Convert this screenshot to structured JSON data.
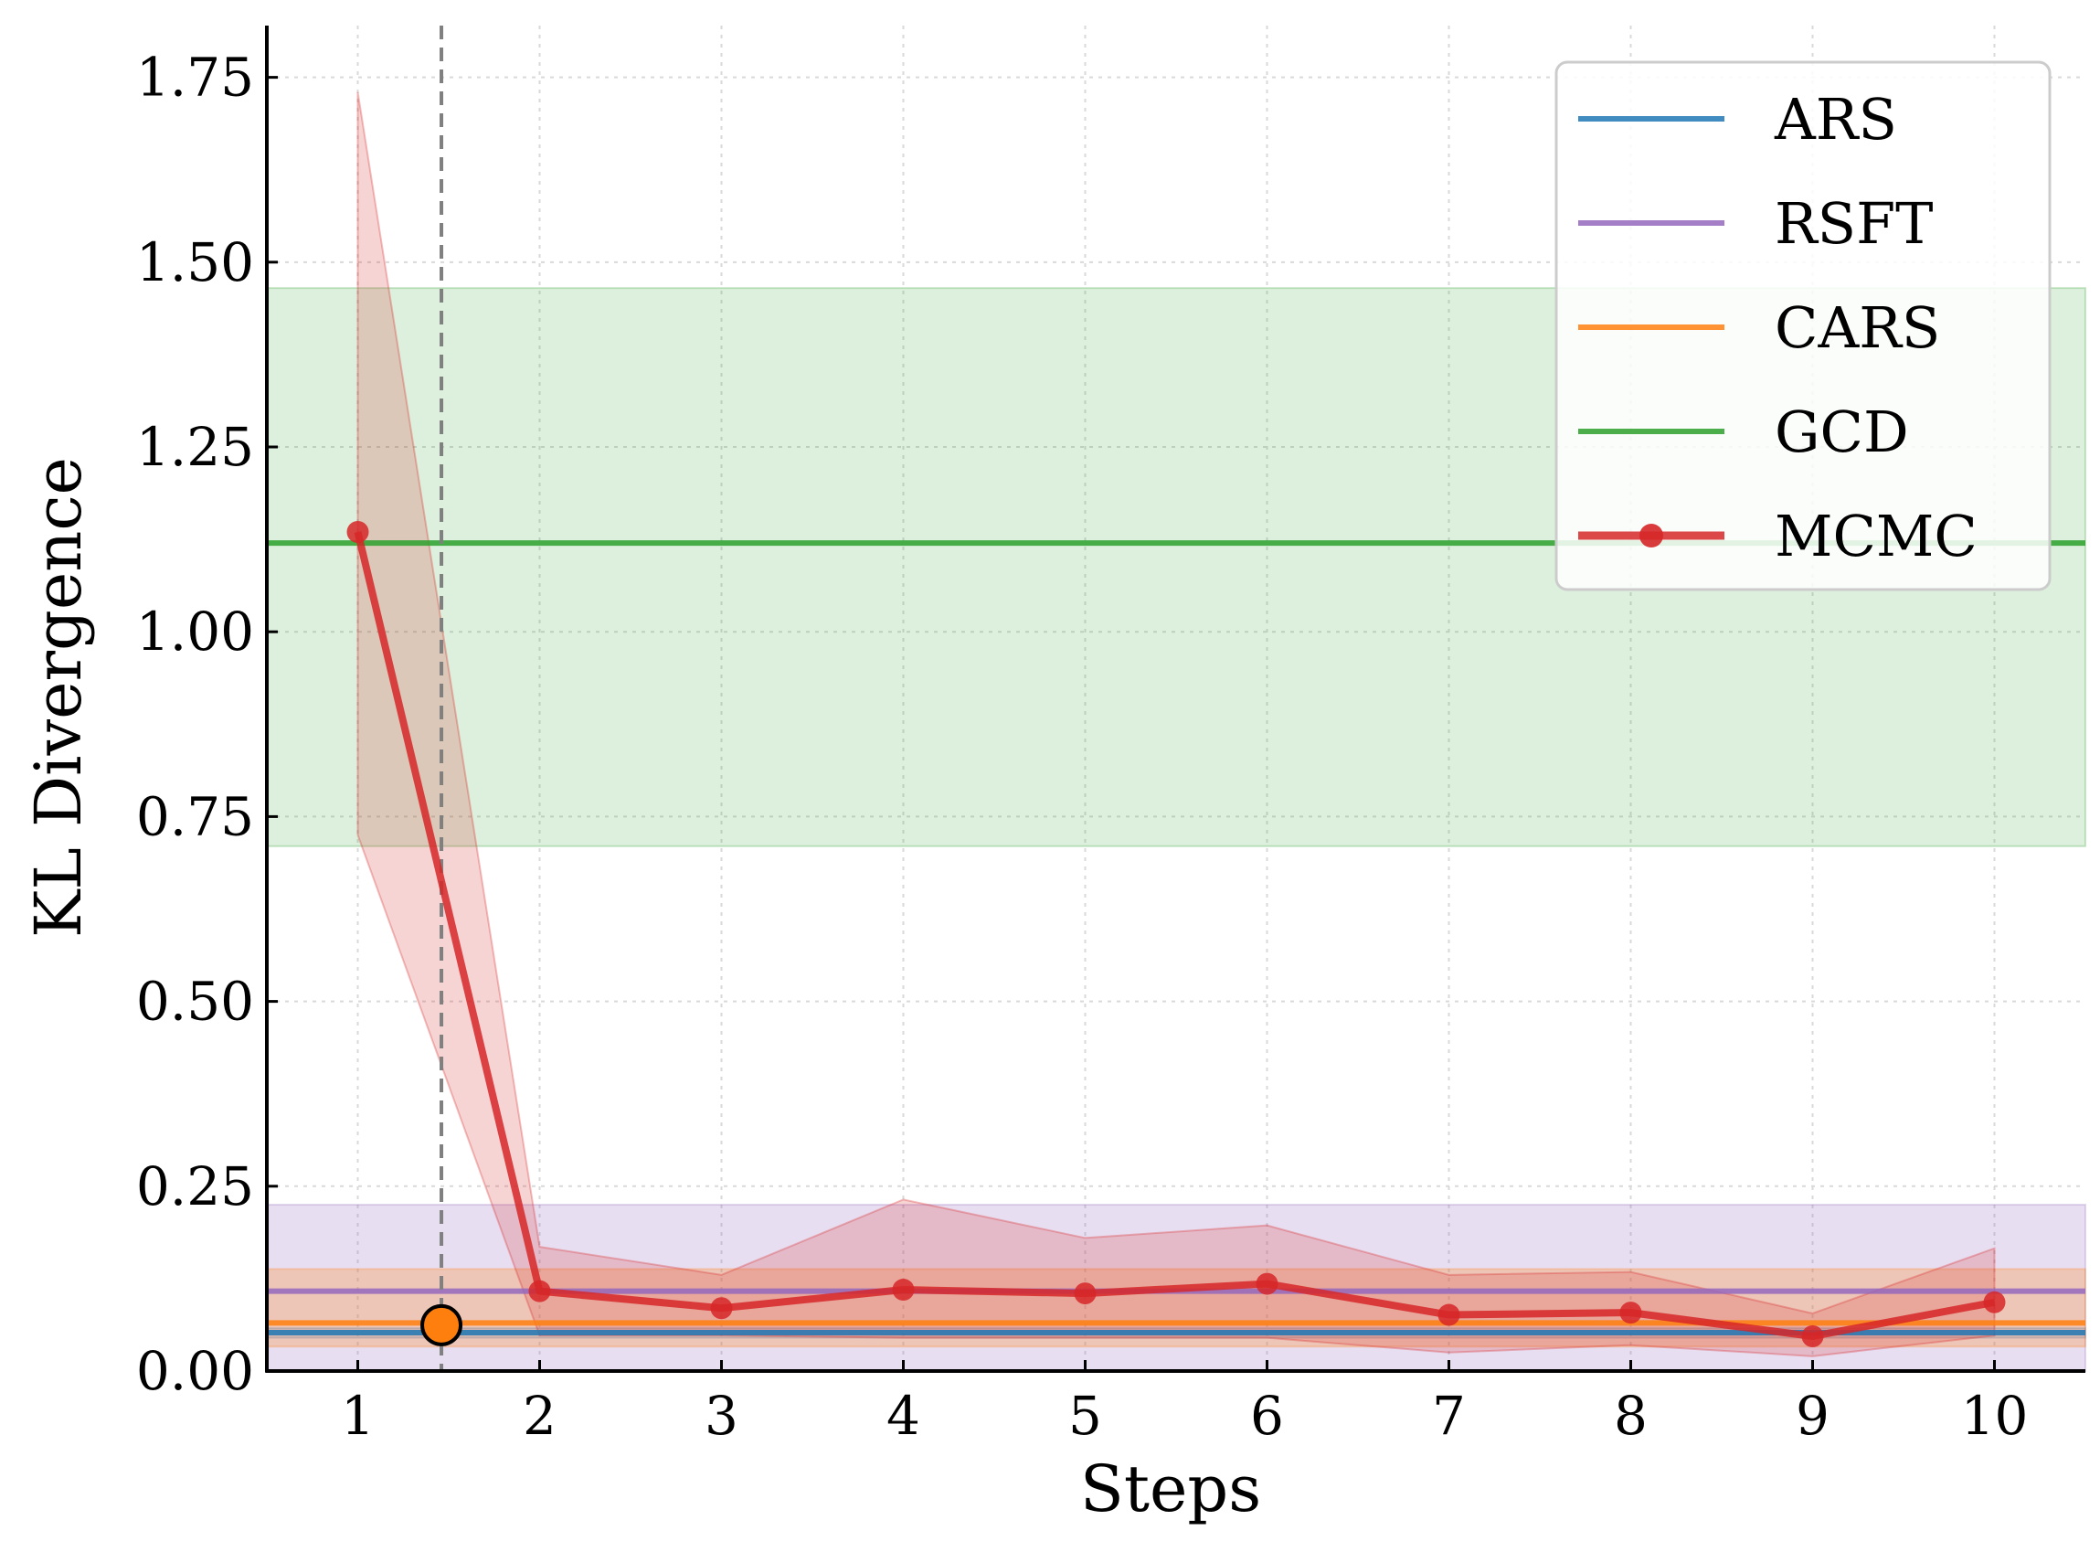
{
  "chart_data": {
    "type": "line",
    "title": "",
    "xlabel": "Steps",
    "ylabel": "KL Divergence",
    "x": [
      1,
      2,
      3,
      4,
      5,
      6,
      7,
      8,
      9,
      10
    ],
    "x_ticks": [
      "1",
      "2",
      "3",
      "4",
      "5",
      "6",
      "7",
      "8",
      "9",
      "10"
    ],
    "xlim": [
      0.5,
      10.5
    ],
    "ylim": [
      0,
      1.82
    ],
    "y_ticks": [
      "0.00",
      "0.25",
      "0.50",
      "0.75",
      "1.00",
      "1.25",
      "1.50",
      "1.75"
    ],
    "y_tick_values": [
      0,
      0.25,
      0.5,
      0.75,
      1.0,
      1.25,
      1.5,
      1.75
    ],
    "grid": true,
    "legend_position": "top-right",
    "baselines": [
      {
        "name": "ARS",
        "color": "#1f77b4",
        "value": 0.052,
        "band": [
          0.045,
          0.058
        ]
      },
      {
        "name": "RSFT",
        "color": "#9467bd",
        "value": 0.108,
        "band": [
          0.0,
          0.225
        ]
      },
      {
        "name": "CARS",
        "color": "#ff7f0e",
        "value": 0.065,
        "band": [
          0.033,
          0.138
        ]
      },
      {
        "name": "GCD",
        "color": "#2ca02c",
        "value": 1.12,
        "band": [
          0.71,
          1.465
        ]
      }
    ],
    "series": [
      {
        "name": "MCMC",
        "color": "#d62728",
        "values": [
          1.135,
          0.108,
          0.085,
          0.11,
          0.105,
          0.118,
          0.076,
          0.079,
          0.047,
          0.093
        ],
        "band_upper": [
          1.73,
          0.168,
          0.13,
          0.232,
          0.18,
          0.197,
          0.13,
          0.134,
          0.078,
          0.166
        ],
        "band_lower": [
          0.725,
          0.048,
          0.048,
          0.045,
          0.045,
          0.045,
          0.025,
          0.035,
          0.02,
          0.048
        ]
      }
    ],
    "annotations": {
      "vertical_line_x": 1.46,
      "marker": {
        "x": 1.46,
        "y": 0.062,
        "color": "#ff7f0e"
      }
    }
  }
}
